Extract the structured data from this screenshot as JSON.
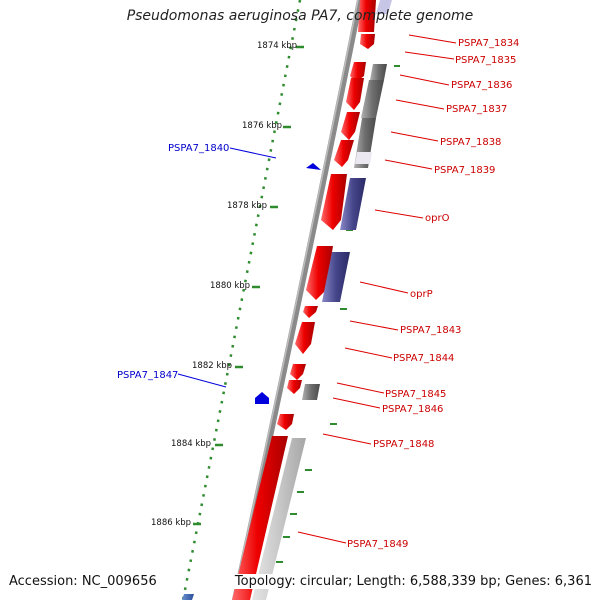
{
  "title": "Pseudomonas aeruginosa PA7, complete genome",
  "footer": {
    "accession": "Accession: NC_009656",
    "summary": "Topology: circular; Length: 6,588,339 bp; Genes: 6,361"
  },
  "colors": {
    "forward_cds": "#ee1111",
    "reverse_cds": "#ee1111",
    "operon_dark": "#55558a",
    "gray_feature": "#777777",
    "light_gray_feature": "#c4c4c4",
    "backbone": "#8a8a8a",
    "scale_ticks": "#2e8b2e",
    "label_forward": "#cc0000",
    "label_reverse": "#0000cc"
  },
  "scale_labels": [
    {
      "text": "1874 kbp"
    },
    {
      "text": "1876 kbp"
    },
    {
      "text": "1878 kbp"
    },
    {
      "text": "1880 kbp"
    },
    {
      "text": "1882 kbp"
    },
    {
      "text": "1884 kbp"
    },
    {
      "text": "1886 kbp"
    }
  ],
  "gene_labels_right": [
    {
      "text": "PSPA7_1834"
    },
    {
      "text": "PSPA7_1835"
    },
    {
      "text": "PSPA7_1836"
    },
    {
      "text": "PSPA7_1837"
    },
    {
      "text": "PSPA7_1838"
    },
    {
      "text": "PSPA7_1839"
    },
    {
      "text": "oprO"
    },
    {
      "text": "oprP"
    },
    {
      "text": "PSPA7_1843"
    },
    {
      "text": "PSPA7_1844"
    },
    {
      "text": "PSPA7_1845"
    },
    {
      "text": "PSPA7_1846"
    },
    {
      "text": "PSPA7_1848"
    },
    {
      "text": "PSPA7_1849"
    }
  ],
  "gene_labels_left": [
    {
      "text": "PSPA7_1840"
    },
    {
      "text": "PSPA7_1847"
    }
  ]
}
